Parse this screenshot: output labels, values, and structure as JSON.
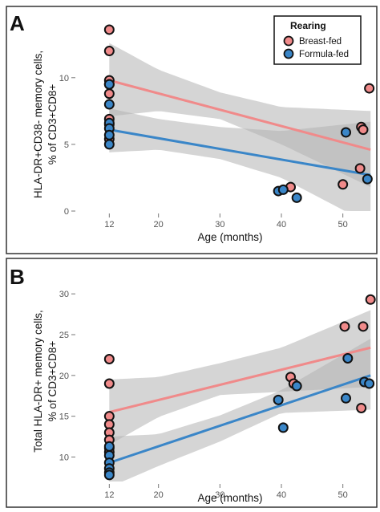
{
  "colors": {
    "breast": "#f08a8a",
    "formula": "#3a86c8",
    "band": "#b3b3b3",
    "point_outline": "#111111"
  },
  "legend": {
    "title": "Rearing",
    "items": [
      {
        "label": "Breast-fed",
        "color": "#f08a8a"
      },
      {
        "label": "Formula-fed",
        "color": "#3a86c8"
      }
    ]
  },
  "chart_data": [
    {
      "type": "scatter",
      "panel": "A",
      "xlabel": "Age (months)",
      "ylabel": [
        "HLA-DR+CD38- memory cells,",
        "% of CD3+CD8+"
      ],
      "xlim": [
        7,
        55
      ],
      "ylim": [
        0,
        14.5
      ],
      "xticks": [
        12,
        20,
        30,
        40,
        50
      ],
      "yticks": [
        0,
        5,
        10
      ],
      "legend_position": "top-right",
      "series": [
        {
          "name": "Breast-fed",
          "points": [
            [
              12,
              13.6
            ],
            [
              12,
              12.0
            ],
            [
              12,
              9.8
            ],
            [
              12,
              9.5
            ],
            [
              12,
              8.8
            ],
            [
              12,
              6.9
            ],
            [
              12,
              6.5
            ],
            [
              12,
              5.4
            ],
            [
              41.5,
              1.8
            ],
            [
              50,
              2.0
            ],
            [
              52.8,
              3.2
            ],
            [
              53,
              6.3
            ],
            [
              53.3,
              6.1
            ],
            [
              54.3,
              9.2
            ]
          ],
          "fit": {
            "x": [
              12,
              54.5
            ],
            "y": [
              9.8,
              4.6
            ]
          },
          "ci_upper": {
            "x": [
              12,
              20,
              30,
              40,
              54.5
            ],
            "y": [
              12.6,
              10.6,
              8.9,
              7.8,
              7.5
            ]
          },
          "ci_lower": {
            "x": [
              12,
              20,
              30,
              40,
              54.5
            ],
            "y": [
              7.1,
              7.5,
              6.9,
              5.0,
              1.8
            ]
          }
        },
        {
          "name": "Formula-fed",
          "points": [
            [
              12,
              9.5
            ],
            [
              12,
              8.0
            ],
            [
              12,
              6.6
            ],
            [
              12,
              6.2
            ],
            [
              12,
              5.7
            ],
            [
              12,
              5.0
            ],
            [
              39.5,
              1.5
            ],
            [
              40.3,
              1.6
            ],
            [
              42.5,
              1.0
            ],
            [
              50.5,
              5.9
            ],
            [
              54,
              2.4
            ]
          ],
          "fit": {
            "x": [
              12,
              54.5
            ],
            "y": [
              6.1,
              2.7
            ]
          },
          "ci_upper": {
            "x": [
              12,
              20,
              30,
              40,
              54.5
            ],
            "y": [
              7.7,
              6.9,
              6.3,
              6.0,
              6.7
            ]
          },
          "ci_lower": {
            "x": [
              12,
              20,
              30,
              40,
              54.5
            ],
            "y": [
              4.4,
              4.6,
              3.9,
              2.5,
              -1.0
            ]
          }
        }
      ]
    },
    {
      "type": "scatter",
      "panel": "B",
      "xlabel": "Age (months)",
      "ylabel": [
        "Total HLA-DR+ memory cells,",
        "% of CD3+CD8+"
      ],
      "xlim": [
        7,
        55
      ],
      "ylim": [
        7,
        31
      ],
      "xticks": [
        12,
        20,
        30,
        40,
        50
      ],
      "yticks": [
        10,
        15,
        20,
        25,
        30
      ],
      "series": [
        {
          "name": "Breast-fed",
          "points": [
            [
              12,
              22.0
            ],
            [
              12,
              19.0
            ],
            [
              12,
              15.0
            ],
            [
              12,
              14.0
            ],
            [
              12,
              13.0
            ],
            [
              12,
              12.1
            ],
            [
              12,
              11.1
            ],
            [
              12,
              10.6
            ],
            [
              41.5,
              19.8
            ],
            [
              42,
              19.0
            ],
            [
              50.3,
              26.0
            ],
            [
              53,
              16.0
            ],
            [
              53.3,
              26.0
            ],
            [
              54.5,
              29.3
            ]
          ],
          "fit": {
            "x": [
              12,
              54.5
            ],
            "y": [
              15.5,
              23.4
            ]
          },
          "ci_upper": {
            "x": [
              12,
              20,
              30,
              40,
              54.5
            ],
            "y": [
              19.5,
              19.8,
              21.5,
              23.4,
              28.0
            ]
          },
          "ci_lower": {
            "x": [
              12,
              20,
              30,
              40,
              54.5
            ],
            "y": [
              11.5,
              14.9,
              17.6,
              18.0,
              18.6
            ]
          }
        },
        {
          "name": "Formula-fed",
          "points": [
            [
              12,
              11.3
            ],
            [
              12,
              10.2
            ],
            [
              12,
              9.3
            ],
            [
              12,
              8.6
            ],
            [
              12,
              8.1
            ],
            [
              12,
              7.8
            ],
            [
              39.5,
              17.0
            ],
            [
              40.3,
              13.6
            ],
            [
              42.5,
              18.7
            ],
            [
              50.5,
              17.2
            ],
            [
              50.8,
              22.1
            ],
            [
              53.5,
              19.2
            ],
            [
              54.3,
              19.0
            ]
          ],
          "fit": {
            "x": [
              12,
              54.5
            ],
            "y": [
              9.3,
              20.0
            ]
          },
          "ci_upper": {
            "x": [
              12,
              20,
              30,
              40,
              54.5
            ],
            "y": [
              12.5,
              12.8,
              15.1,
              18.2,
              24.5
            ]
          },
          "ci_lower": {
            "x": [
              12,
              20,
              30,
              40,
              54.5
            ],
            "y": [
              6.3,
              8.9,
              11.9,
              15.4,
              15.8
            ]
          }
        }
      ]
    }
  ]
}
